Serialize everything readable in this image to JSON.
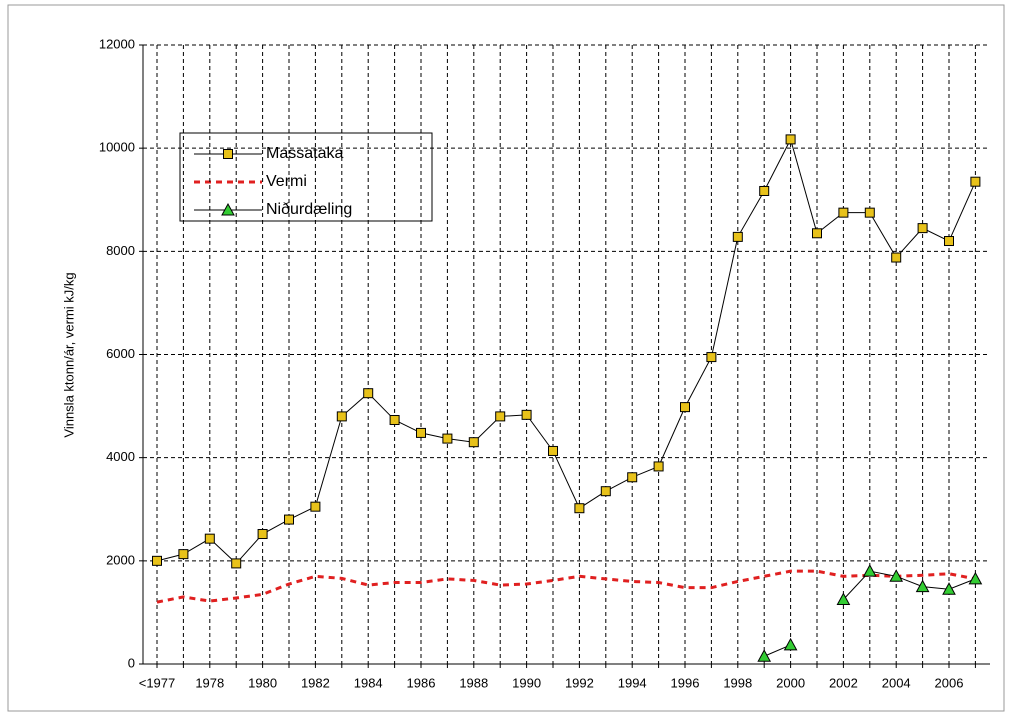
{
  "chart_data": {
    "type": "line",
    "y_label": "Vinnsla ktonn/ár, vermi kJ/kg",
    "categories": [
      "<1977",
      null,
      "1978",
      null,
      "1980",
      null,
      "1982",
      null,
      "1984",
      null,
      "1986",
      null,
      "1988",
      null,
      "1990",
      null,
      "1992",
      null,
      "1994",
      null,
      "1996",
      null,
      "1998",
      null,
      "2000",
      null,
      "2002",
      null,
      "2004",
      null,
      "2006",
      null
    ],
    "series": [
      {
        "name": "Massataka",
        "color": "#000000",
        "marker": "square",
        "marker_color": "#e8c21a",
        "dash": false,
        "values": [
          2000,
          2130,
          2430,
          1950,
          2520,
          2800,
          3050,
          4800,
          5250,
          4730,
          4480,
          4370,
          4300,
          4800,
          4830,
          4130,
          3020,
          3350,
          3620,
          3830,
          4980,
          5950,
          8280,
          9170,
          10170,
          8350,
          8750,
          8750,
          7880,
          8450,
          8200,
          9350
        ]
      },
      {
        "name": "Vermi",
        "color": "#e02020",
        "marker": "none",
        "dash": true,
        "values": [
          1200,
          1300,
          1220,
          1280,
          1350,
          1550,
          1700,
          1660,
          1530,
          1580,
          1580,
          1650,
          1620,
          1530,
          1550,
          1620,
          1700,
          1650,
          1600,
          1580,
          1480,
          1480,
          1600,
          1700,
          1800,
          1800,
          1700,
          1720,
          1700,
          1720,
          1750,
          1650
        ]
      },
      {
        "name": "Niðurdæling",
        "color": "#000000",
        "marker": "triangle",
        "marker_color": "#33cc33",
        "dash": false,
        "values": [
          null,
          null,
          null,
          null,
          null,
          null,
          null,
          null,
          null,
          null,
          null,
          null,
          null,
          null,
          null,
          null,
          null,
          null,
          null,
          null,
          null,
          null,
          null,
          150,
          370,
          null,
          1250,
          1800,
          1700,
          1500,
          1450,
          1650
        ]
      }
    ],
    "ylim": [
      0,
      12000
    ],
    "yticks": [
      0,
      2000,
      4000,
      6000,
      8000,
      10000,
      12000
    ],
    "grid": true
  }
}
